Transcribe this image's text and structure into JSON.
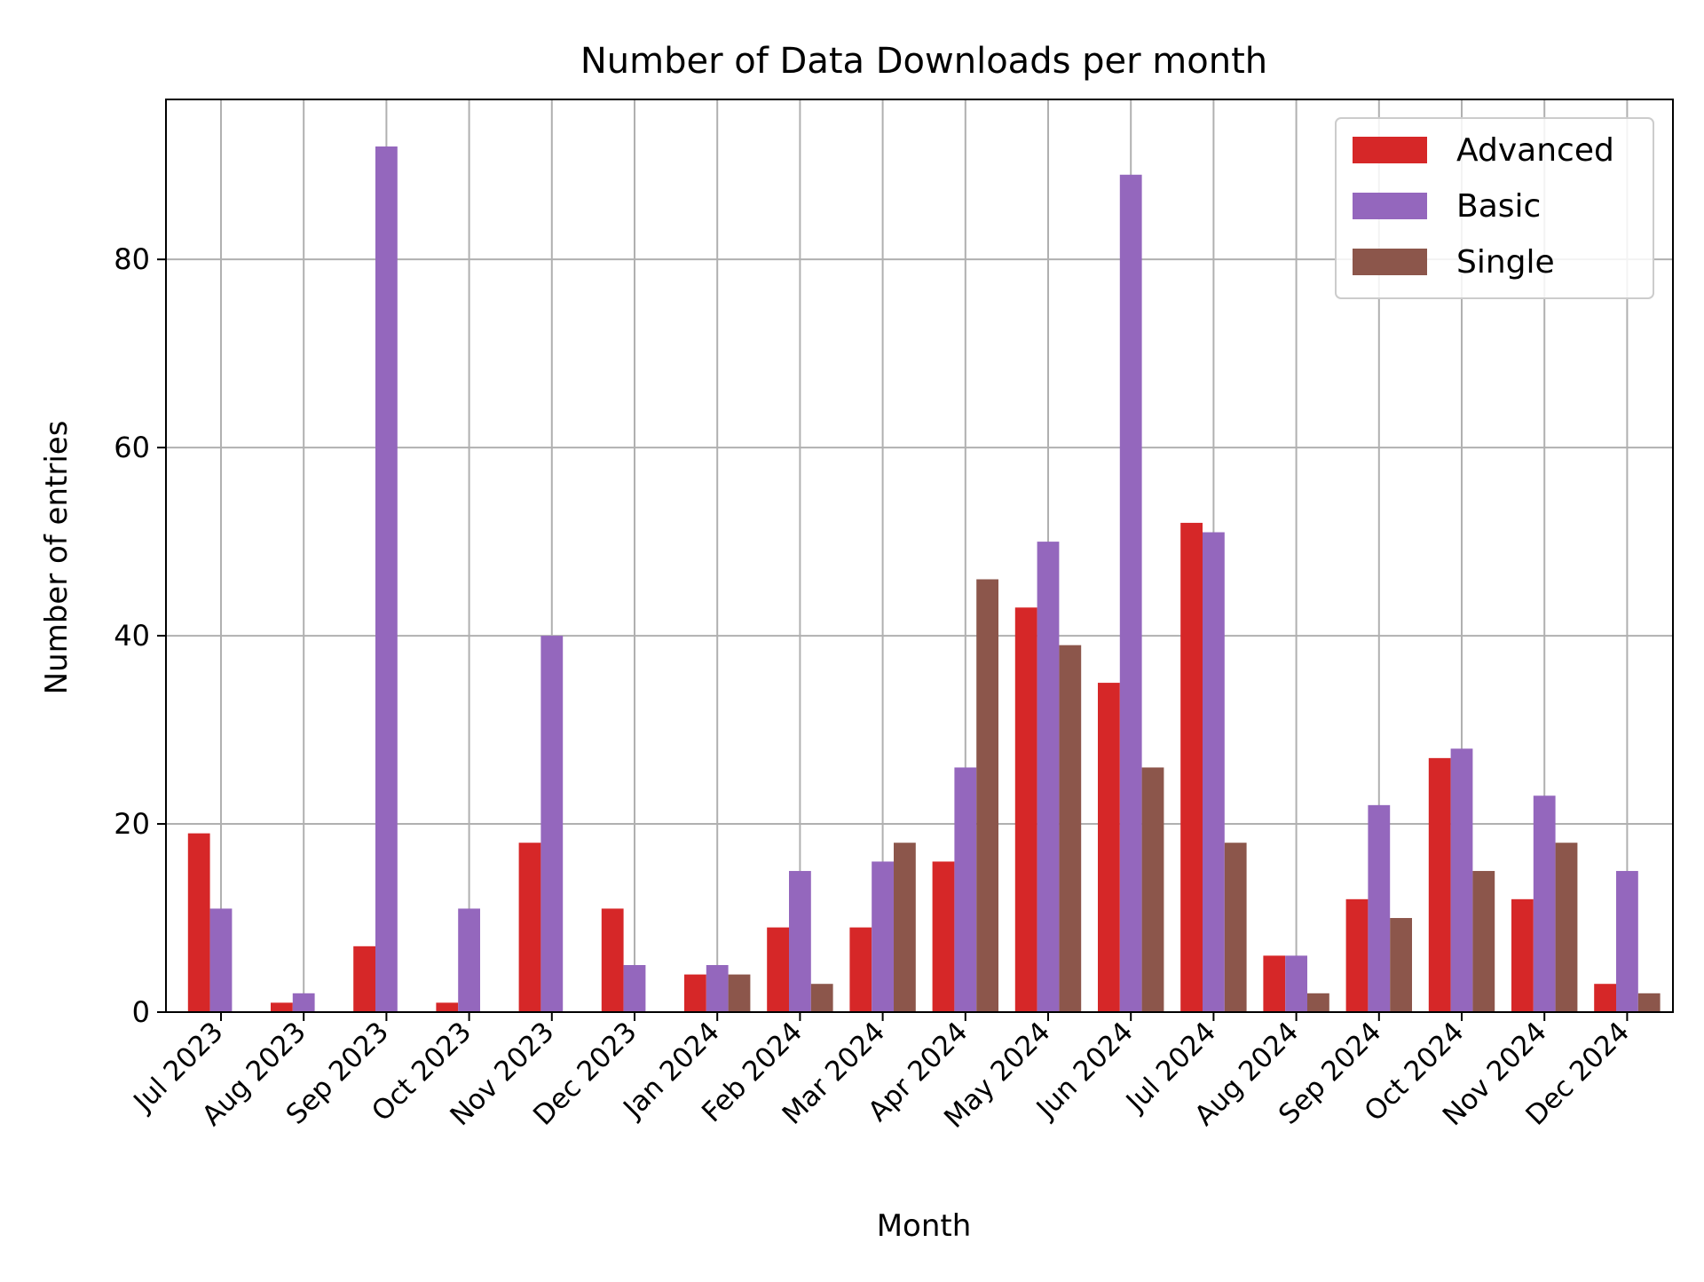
{
  "chart_data": {
    "type": "bar",
    "title": "Number of Data Downloads per month",
    "xlabel": "Month",
    "ylabel": "Number of entries",
    "ylim": [
      0,
      97
    ],
    "yticks": [
      0,
      20,
      40,
      60,
      80
    ],
    "grid": true,
    "legend_position": "top-right",
    "categories": [
      "Jul 2023",
      "Aug 2023",
      "Sep 2023",
      "Oct 2023",
      "Nov 2023",
      "Dec 2023",
      "Jan 2024",
      "Feb 2024",
      "Mar 2024",
      "Apr 2024",
      "May 2024",
      "Jun 2024",
      "Jul 2024",
      "Aug 2024",
      "Sep 2024",
      "Oct 2024",
      "Nov 2024",
      "Dec 2024"
    ],
    "series": [
      {
        "name": "Advanced",
        "color": "#d62728",
        "values": [
          19,
          1,
          7,
          1,
          18,
          11,
          4,
          9,
          9,
          16,
          43,
          35,
          52,
          6,
          12,
          27,
          12,
          3
        ]
      },
      {
        "name": "Basic",
        "color": "#9467bd",
        "values": [
          11,
          2,
          92,
          11,
          40,
          5,
          5,
          15,
          16,
          26,
          50,
          89,
          51,
          6,
          22,
          28,
          23,
          15
        ]
      },
      {
        "name": "Single",
        "color": "#8c564b",
        "values": [
          0,
          0,
          0,
          0,
          0,
          0,
          4,
          3,
          18,
          46,
          39,
          26,
          18,
          2,
          10,
          15,
          18,
          2
        ]
      }
    ]
  }
}
